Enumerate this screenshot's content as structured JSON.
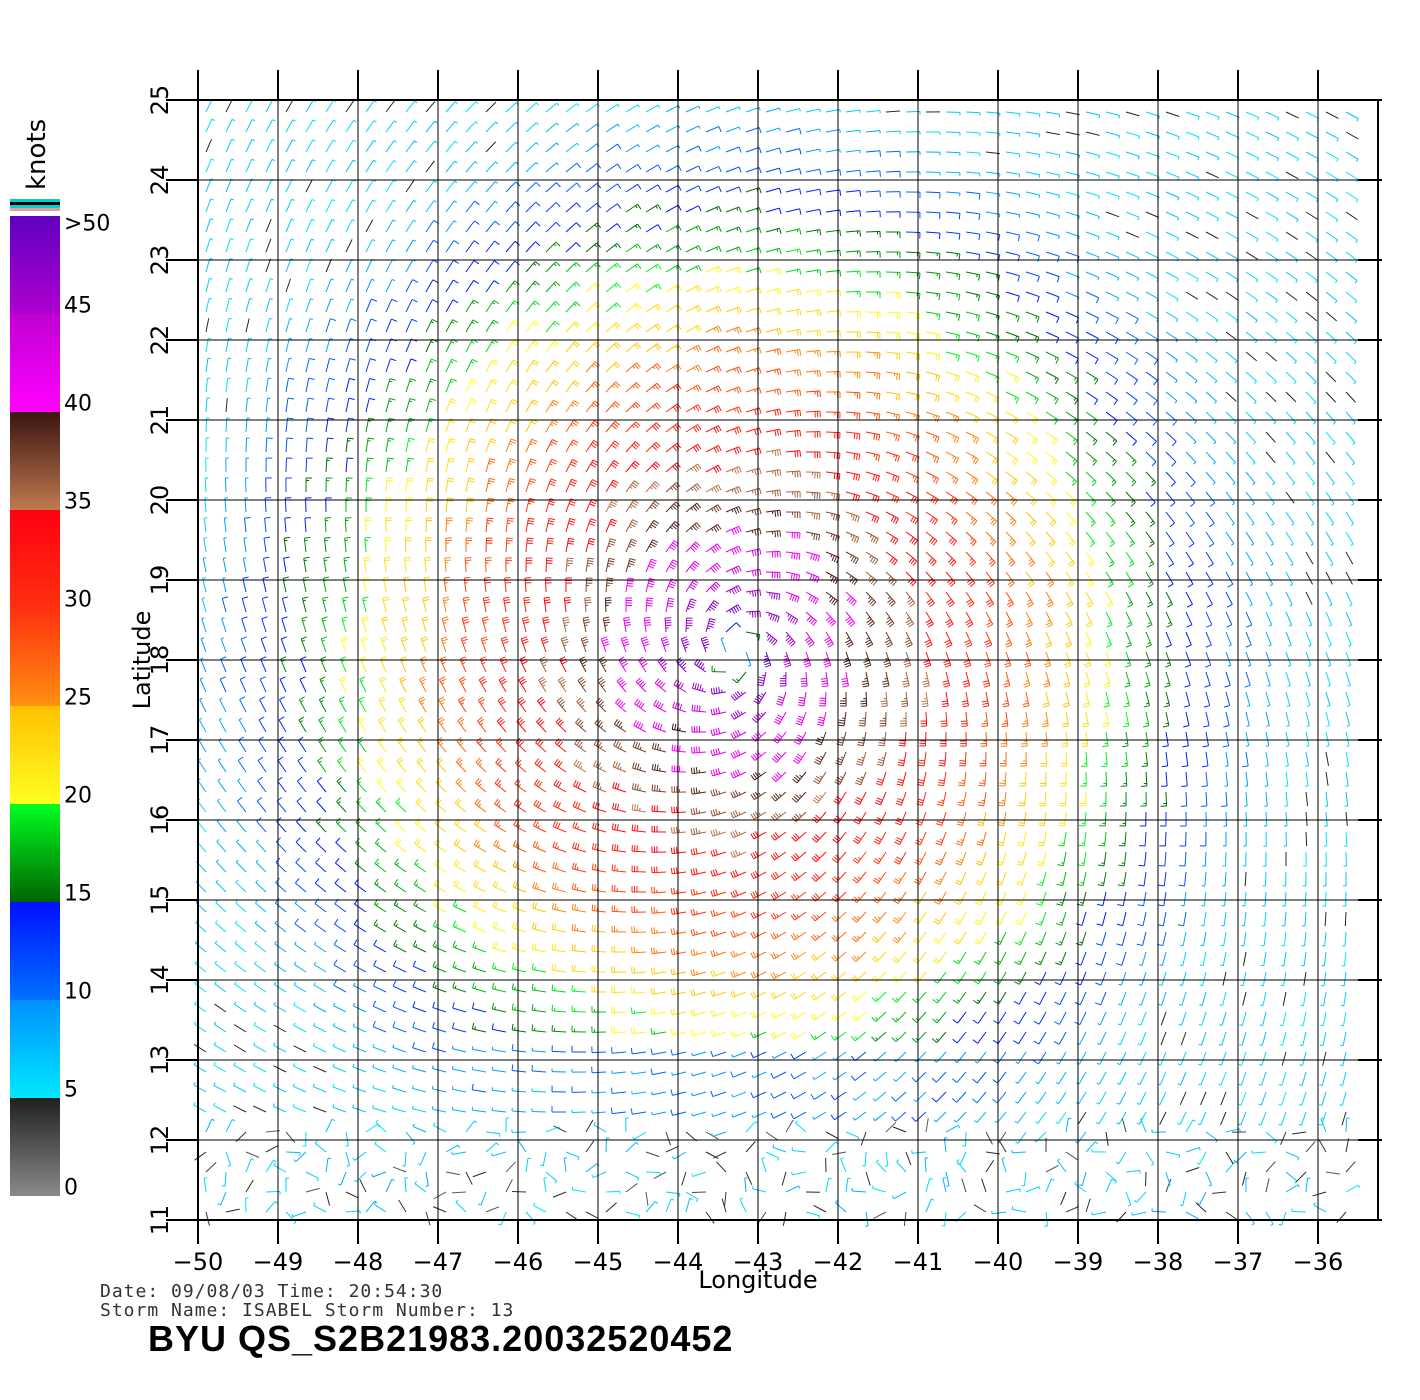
{
  "colorbar": {
    "units": "knots",
    "labels": [
      ">50",
      "45",
      "40",
      "35",
      "30",
      "25",
      "20",
      "15",
      "10",
      "5",
      "0"
    ],
    "stops": [
      {
        "from": 0,
        "to": 5,
        "c1": "#8a8a8a",
        "c2": "#202020"
      },
      {
        "from": 5,
        "to": 10,
        "c1": "#00e8ff",
        "c2": "#0090ff"
      },
      {
        "from": 10,
        "to": 15,
        "c1": "#0070ff",
        "c2": "#0010ff"
      },
      {
        "from": 15,
        "to": 20,
        "c1": "#006400",
        "c2": "#00ff20"
      },
      {
        "from": 20,
        "to": 25,
        "c1": "#ffff20",
        "c2": "#ffc000"
      },
      {
        "from": 25,
        "to": 30,
        "c1": "#ff9010",
        "c2": "#ff3010"
      },
      {
        "from": 30,
        "to": 35,
        "c1": "#ff3010",
        "c2": "#ff0010"
      },
      {
        "from": 35,
        "to": 40,
        "c1": "#c07a50",
        "c2": "#3a1410"
      },
      {
        "from": 40,
        "to": 45,
        "c1": "#ff00ff",
        "c2": "#c000d0"
      },
      {
        "from": 45,
        "to": 50,
        "c1": "#b000d0",
        "c2": "#6000c0"
      }
    ]
  },
  "map": {
    "xlabel": "Longitude",
    "ylabel": "Latitude",
    "lon_ticks": [
      "−50",
      "−49",
      "−48",
      "−47",
      "−46",
      "−45",
      "−44",
      "−43",
      "−42",
      "−41",
      "−40",
      "−39",
      "−38",
      "−37",
      "−36"
    ],
    "lat_ticks": [
      "11",
      "12",
      "13",
      "14",
      "15",
      "16",
      "17",
      "18",
      "19",
      "20",
      "21",
      "22",
      "23",
      "24",
      "25"
    ],
    "lon_range": [
      -50,
      -35.6
    ],
    "lat_range": [
      11,
      25
    ],
    "storm_center": [
      -43.3,
      18.1
    ],
    "grid": true
  },
  "info": {
    "line1": "Date: 09/08/03   Time: 20:54:30",
    "line2": "Storm Name: ISABEL   Storm Number: 13",
    "product": "BYU  QS_S2B21983.20032520452"
  }
}
